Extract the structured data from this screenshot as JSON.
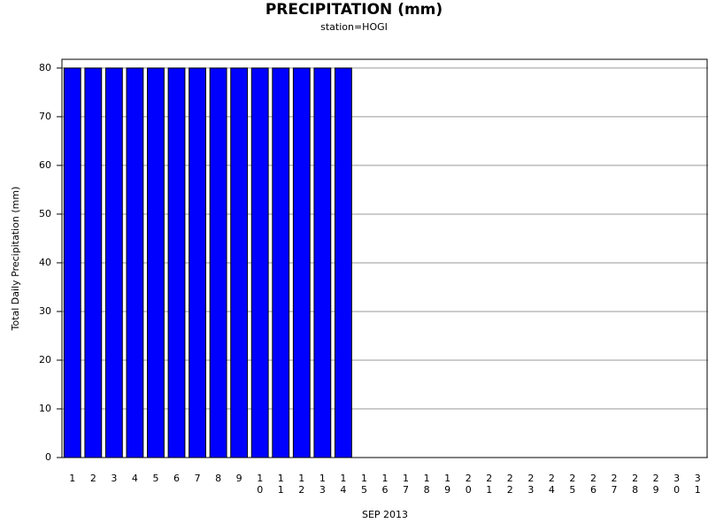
{
  "chart_data": {
    "type": "bar",
    "title": "PRECIPITATION (mm)",
    "subtitle": "station=HOGI",
    "x_label": "SEP 2013",
    "y_label": "Total Daily Precipitation (mm)",
    "categories": [
      "1",
      "2",
      "3",
      "4",
      "5",
      "6",
      "7",
      "8",
      "9",
      "10",
      "11",
      "12",
      "13",
      "14",
      "15",
      "16",
      "17",
      "18",
      "19",
      "20",
      "21",
      "22",
      "23",
      "24",
      "25",
      "26",
      "27",
      "28",
      "29",
      "30",
      "31"
    ],
    "values": [
      80,
      80,
      80,
      80,
      80,
      80,
      80,
      80,
      80,
      80,
      80,
      80,
      80,
      80,
      null,
      null,
      null,
      null,
      null,
      null,
      null,
      null,
      null,
      null,
      null,
      null,
      null,
      null,
      null,
      null,
      null
    ],
    "color": "#0000ff",
    "ylim": [
      0,
      81.8
    ],
    "yticks": [
      0,
      10,
      20,
      30,
      40,
      50,
      60,
      70,
      80
    ],
    "grid": true
  }
}
